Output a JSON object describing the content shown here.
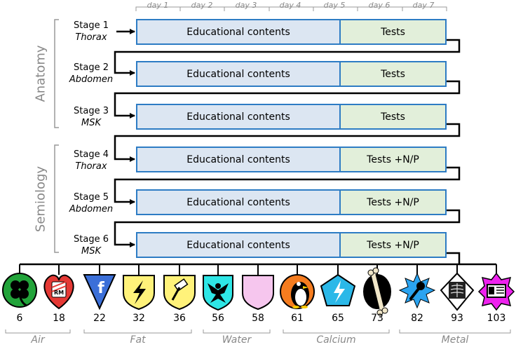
{
  "timeline": {
    "days": [
      "day 1",
      "day 2",
      "day 3",
      "day 4",
      "day 5",
      "day 6",
      "day 7"
    ]
  },
  "groups": [
    {
      "label": "Anatomy"
    },
    {
      "label": "Semiology"
    }
  ],
  "stages": [
    {
      "title": "Stage 1",
      "subtitle": "Thorax",
      "content": "Educational contents",
      "tests": "Tests"
    },
    {
      "title": "Stage 2",
      "subtitle": "Abdomen",
      "content": "Educational contents",
      "tests": "Tests"
    },
    {
      "title": "Stage 3",
      "subtitle": "MSK",
      "content": "Educational contents",
      "tests": "Tests"
    },
    {
      "title": "Stage 4",
      "subtitle": "Thorax",
      "content": "Educational contents",
      "tests": "Tests +N/P"
    },
    {
      "title": "Stage 5",
      "subtitle": "Abdomen",
      "content": "Educational contents",
      "tests": "Tests +N/P"
    },
    {
      "title": "Stage 6",
      "subtitle": "MSK",
      "content": "Educational contents",
      "tests": "Tests +N/P"
    }
  ],
  "badges": [
    {
      "value": "6",
      "icon": "clover-icon",
      "color": "#22a33a"
    },
    {
      "value": "18",
      "icon": "heart-crest-icon",
      "color": "#e53935"
    },
    {
      "value": "22",
      "icon": "f-shield-icon",
      "color": "#3b6fd8"
    },
    {
      "value": "32",
      "icon": "lightning-shield-icon",
      "color": "#fff27a"
    },
    {
      "value": "36",
      "icon": "hammer-shield-icon",
      "color": "#fff27a"
    },
    {
      "value": "56",
      "icon": "eagle-crest-icon",
      "color": "#2ee6e6"
    },
    {
      "value": "58",
      "icon": "moon-shield-icon",
      "color": "#f6c6ee"
    },
    {
      "value": "61",
      "icon": "penguin-icon",
      "color": "#f57c1f"
    },
    {
      "value": "65",
      "icon": "bolt-pentagon-icon",
      "color": "#2bb8e8"
    },
    {
      "value": "73",
      "icon": "bone-icon",
      "color": "#000000"
    },
    {
      "value": "82",
      "icon": "microphone-star-icon",
      "color": "#2aa3f0"
    },
    {
      "value": "93",
      "icon": "xray-diamond-icon",
      "color": "#ffffff"
    },
    {
      "value": "103",
      "icon": "id-card-star-icon",
      "color": "#ee22ee"
    }
  ],
  "categories": [
    {
      "label": "Air"
    },
    {
      "label": "Fat"
    },
    {
      "label": "Water"
    },
    {
      "label": "Calcium"
    },
    {
      "label": "Metal"
    }
  ]
}
